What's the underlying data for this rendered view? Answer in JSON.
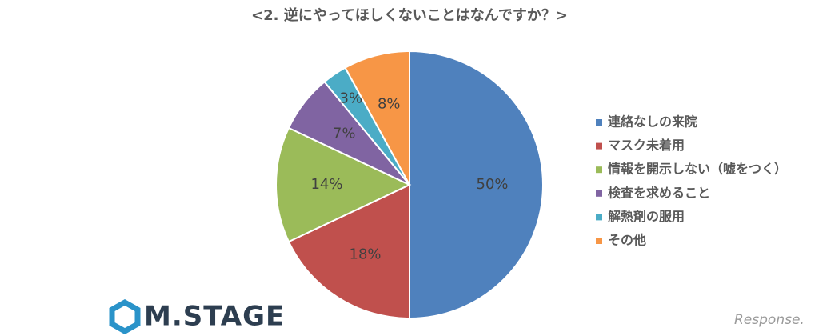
{
  "chart_data": {
    "type": "pie",
    "title": "<2. 逆にやってほしくないことはなんですか？>",
    "categories": [
      "連絡なしの来院",
      "マスク未着用",
      "情報を開示しない（嘘をつく）",
      "検査を求めること",
      "解熱剤の服用",
      "その他"
    ],
    "values": [
      50,
      18,
      14,
      7,
      3,
      8
    ],
    "value_labels": [
      "50%",
      "18%",
      "14%",
      "7%",
      "3%",
      "8%"
    ],
    "colors": [
      "#4f81bd",
      "#c0504d",
      "#9bbb59",
      "#8064a2",
      "#4bacc6",
      "#f79646"
    ],
    "legend": "right"
  },
  "branding": {
    "left": "M.STAGE",
    "right": "Response."
  }
}
